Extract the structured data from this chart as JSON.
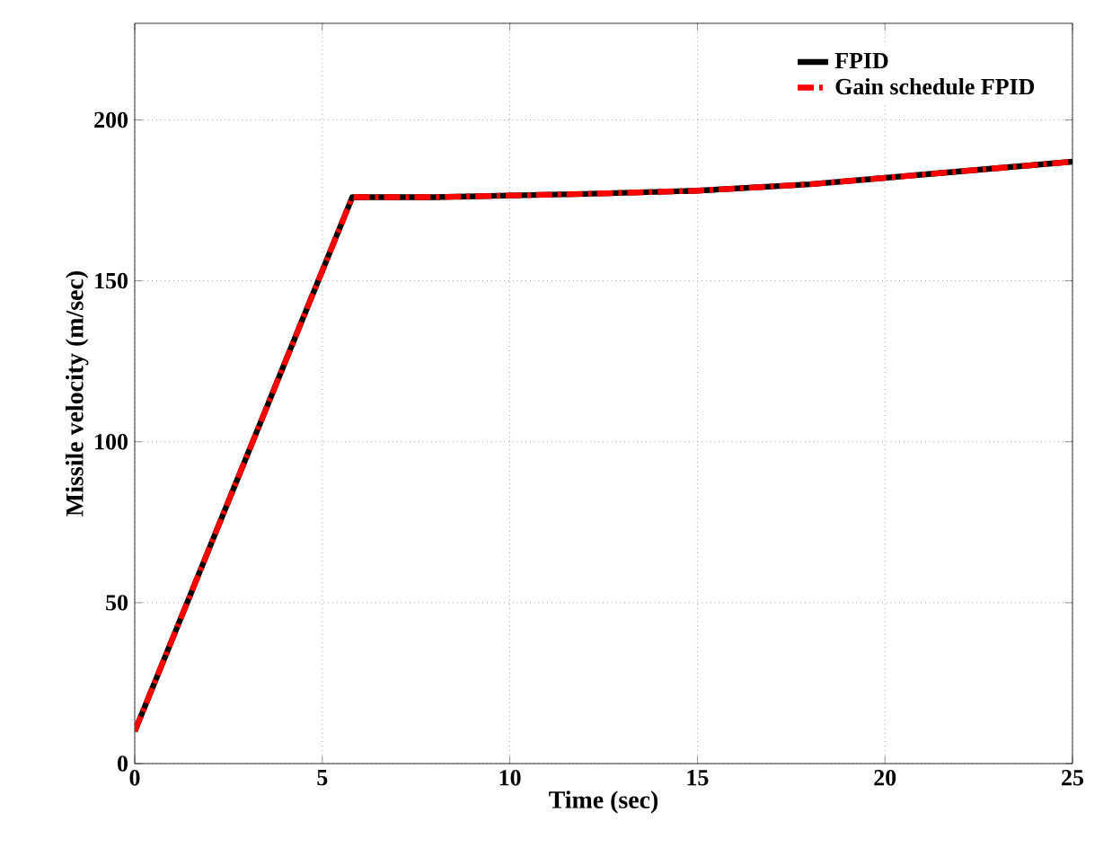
{
  "chart_data": {
    "type": "line",
    "xlabel": "Time (sec)",
    "ylabel": "Missile velocity (m/sec)",
    "xlim": [
      0,
      25
    ],
    "ylim": [
      0,
      230
    ],
    "xticks": [
      0,
      5,
      10,
      15,
      20,
      25
    ],
    "yticks": [
      0,
      50,
      100,
      150,
      200
    ],
    "grid": true,
    "legend": "top right",
    "series": [
      {
        "name": "FPID",
        "color": "#000000",
        "line_style": "solid",
        "x": [
          0,
          5.8,
          8,
          10,
          12,
          15,
          18,
          20,
          22,
          25
        ],
        "values": [
          10,
          176,
          176,
          176.5,
          177,
          178,
          180,
          182,
          184,
          187
        ]
      },
      {
        "name": "Gain schedule FPID",
        "color": "#ff0000",
        "line_style": "dashed",
        "x": [
          0,
          5.8,
          8,
          10,
          12,
          15,
          18,
          20,
          22,
          25
        ],
        "values": [
          10,
          176,
          176,
          176.5,
          177,
          178,
          180,
          182,
          184,
          187
        ]
      }
    ]
  }
}
